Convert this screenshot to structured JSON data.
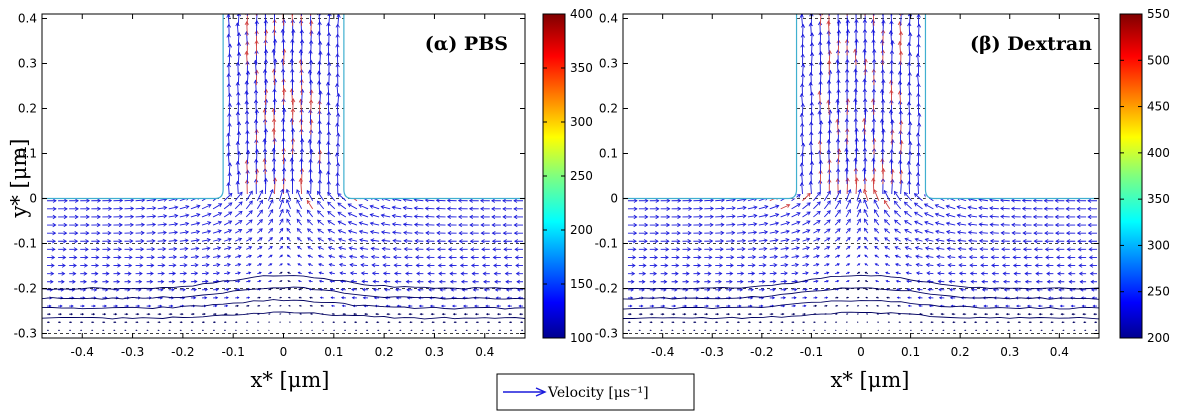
{
  "chart_data": [
    {
      "type": "quiver",
      "title": "(α) PBS",
      "xlabel": "x* [μm]",
      "ylabel": "y* [μm]",
      "xlim": [
        -0.48,
        0.48
      ],
      "ylim": [
        -0.31,
        0.41
      ],
      "xticks": [
        -0.4,
        -0.3,
        -0.2,
        -0.1,
        0,
        0.1,
        0.2,
        0.3,
        0.4
      ],
      "xtick_labels": [
        "-0.4",
        "-0.3",
        "-0.2",
        "-0.1",
        "0",
        "0.1",
        "0.2",
        "0.3",
        "0.4"
      ],
      "yticks": [
        -0.3,
        -0.2,
        -0.1,
        0,
        0.1,
        0.2,
        0.3,
        0.4
      ],
      "ytick_labels": [
        "-0.3",
        "-0.2",
        "-0.1",
        "0",
        "0.1",
        "0.2",
        "0.3",
        "0.4"
      ],
      "grid": "horizontal dashed",
      "channel_halfwidth": 0.12,
      "colorbar": {
        "range": [
          100,
          400
        ],
        "ticks": [
          100,
          150,
          200,
          250,
          300,
          350,
          400
        ],
        "tick_labels": [
          "100",
          "150",
          "200",
          "250",
          "300",
          "350",
          "400"
        ]
      }
    },
    {
      "type": "quiver",
      "title": "(β) Dextran",
      "xlabel": "x* [μm]",
      "ylabel": "",
      "xlim": [
        -0.48,
        0.48
      ],
      "ylim": [
        -0.31,
        0.41
      ],
      "xticks": [
        -0.4,
        -0.3,
        -0.2,
        -0.1,
        0,
        0.1,
        0.2,
        0.3,
        0.4
      ],
      "xtick_labels": [
        "-0.4",
        "-0.3",
        "-0.2",
        "-0.1",
        "0",
        "0.1",
        "0.2",
        "0.3",
        "0.4"
      ],
      "yticks": [
        -0.3,
        -0.2,
        -0.1,
        0,
        0.1,
        0.2,
        0.3,
        0.4
      ],
      "ytick_labels": [
        "-0.3",
        "-0.2",
        "-0.1",
        "0",
        "0.1",
        "0.2",
        "0.3",
        "0.4"
      ],
      "grid": "horizontal dashed",
      "channel_halfwidth": 0.13,
      "colorbar": {
        "range": [
          200,
          550
        ],
        "ticks": [
          200,
          250,
          300,
          350,
          400,
          450,
          500,
          550
        ],
        "tick_labels": [
          "200",
          "250",
          "300",
          "350",
          "400",
          "450",
          "500",
          "550"
        ]
      }
    }
  ],
  "legend": {
    "label": "Velocity [μs⁻¹]",
    "placement": "bottom-center"
  },
  "colors": {
    "arrow": "#1a1adc",
    "arrow_dark": "#000060",
    "arrow_fast": "#d04040",
    "grid": "#000000"
  }
}
